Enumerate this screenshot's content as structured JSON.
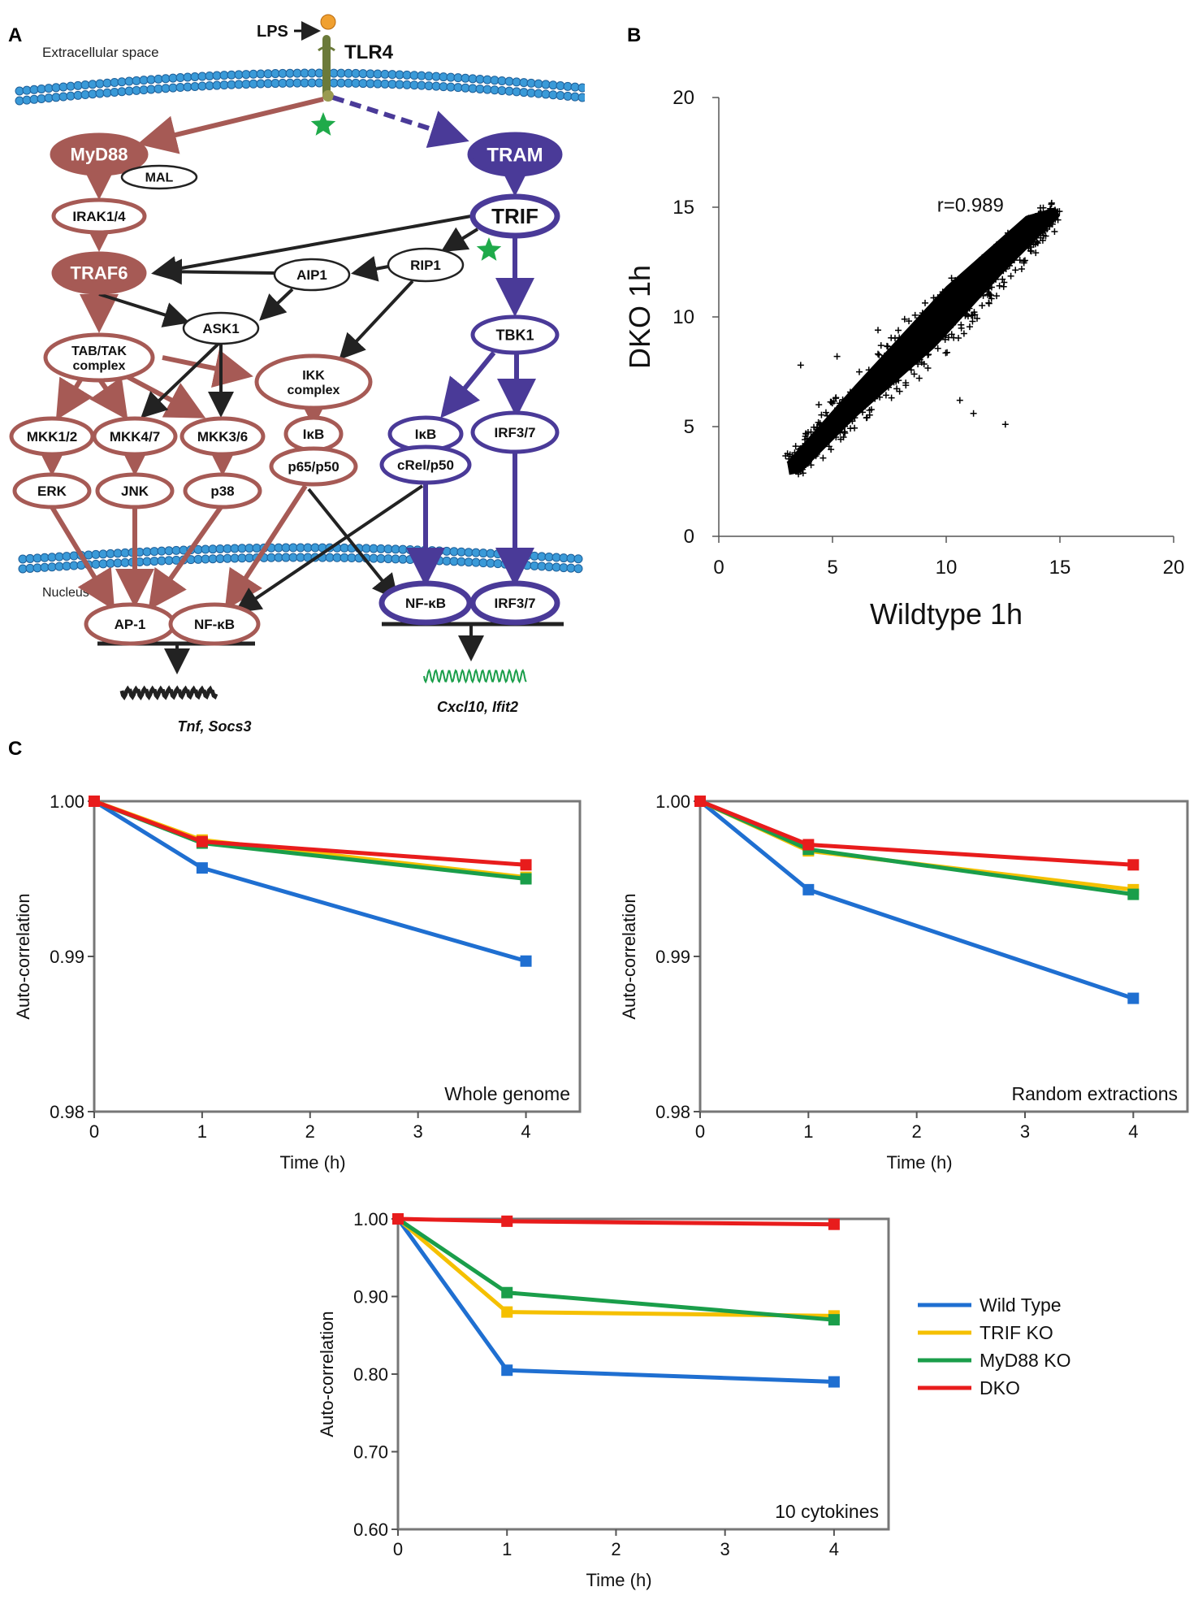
{
  "panels": {
    "a": "A",
    "b": "B",
    "c": "C"
  },
  "colors": {
    "myd88": "#a65a55",
    "trif": "#4a3a98",
    "black": "#222222",
    "star": "#1faa4a",
    "wild_type": "#1f6fd1",
    "trif_ko": "#f5c000",
    "myd88_ko": "#1a9e4a",
    "dko": "#e81c1c"
  },
  "pathway": {
    "extracellular": "Extracellular space",
    "lps": "LPS",
    "tlr4": "TLR4",
    "nucleus": "Nucleus",
    "nodes": {
      "myd88": "MyD88",
      "mal": "MAL",
      "irak": "IRAK1/4",
      "traf6": "TRAF6",
      "tram": "TRAM",
      "trif": "TRIF",
      "rip1": "RIP1",
      "aip1": "AIP1",
      "ask1": "ASK1",
      "tabtak1": "TAB/TAK",
      "tabtak2": "complex",
      "ikk1": "IKK",
      "ikk2": "complex",
      "tbk1": "TBK1",
      "mkk12": "MKK1/2",
      "mkk47": "MKK4/7",
      "mkk36": "MKK3/6",
      "ikb_left": "IκB",
      "p65": "p65/p50",
      "ikb_right": "IκB",
      "crel": "cRel/p50",
      "irf37": "IRF3/7",
      "erk": "ERK",
      "jnk": "JNK",
      "p38": "p38",
      "ap1": "AP-1",
      "nfkb_left": "NF-κB",
      "nfkb_right": "NF-κB",
      "irf37_nuc": "IRF3/7"
    },
    "genes_left": "Tnf, Socs3",
    "genes_right": "Cxcl10, Ifit2"
  },
  "chart_data": [
    {
      "type": "scatter",
      "id": "B",
      "xlabel": "Wildtype 1h",
      "ylabel": "DKO 1h",
      "xlim": [
        0,
        20
      ],
      "ylim": [
        0,
        20
      ],
      "xticks": [
        "0",
        "5",
        "10",
        "15",
        "20"
      ],
      "yticks": [
        "0",
        "5",
        "10",
        "15",
        "20"
      ],
      "annotation": "r=0.989",
      "points_description": "dense cloud along y≈x from about (3,3) to (15,15)"
    },
    {
      "type": "line",
      "id": "C1",
      "title": "Whole genome",
      "xlabel": "Time (h)",
      "ylabel": "Auto-correlation",
      "x": [
        0,
        1,
        4
      ],
      "xlim": [
        0,
        4.5
      ],
      "ylim": [
        0.98,
        1.0
      ],
      "xticks": [
        "0",
        "1",
        "2",
        "3",
        "4"
      ],
      "yticks": [
        "1.00",
        "0.99",
        "0.98"
      ],
      "series": [
        {
          "name": "Wild Type",
          "values": [
            1.0,
            0.9957,
            0.9897
          ]
        },
        {
          "name": "TRIF KO",
          "values": [
            1.0,
            0.9975,
            0.9951
          ]
        },
        {
          "name": "MyD88 KO",
          "values": [
            1.0,
            0.9973,
            0.995
          ]
        },
        {
          "name": "DKO",
          "values": [
            1.0,
            0.9974,
            0.9959
          ]
        }
      ]
    },
    {
      "type": "line",
      "id": "C2",
      "title": "Random extractions",
      "xlabel": "Time (h)",
      "ylabel": "Auto-correlation",
      "x": [
        0,
        1,
        4
      ],
      "xlim": [
        0,
        4.5
      ],
      "ylim": [
        0.98,
        1.0
      ],
      "xticks": [
        "0",
        "1",
        "2",
        "3",
        "4"
      ],
      "yticks": [
        "1.00",
        "0.99",
        "0.98"
      ],
      "series": [
        {
          "name": "Wild Type",
          "values": [
            1.0,
            0.9943,
            0.9873
          ]
        },
        {
          "name": "TRIF KO",
          "values": [
            1.0,
            0.9968,
            0.9943
          ]
        },
        {
          "name": "MyD88 KO",
          "values": [
            1.0,
            0.9969,
            0.994
          ]
        },
        {
          "name": "DKO",
          "values": [
            1.0,
            0.9972,
            0.9959
          ]
        }
      ]
    },
    {
      "type": "line",
      "id": "C3",
      "title": "10 cytokines",
      "xlabel": "Time (h)",
      "ylabel": "Auto-correlation",
      "x": [
        0,
        1,
        4
      ],
      "xlim": [
        0,
        4.5
      ],
      "ylim": [
        0.6,
        1.0
      ],
      "xticks": [
        "0",
        "1",
        "2",
        "3",
        "4"
      ],
      "yticks": [
        "1.00",
        "0.90",
        "0.80",
        "0.70",
        "0.60"
      ],
      "series": [
        {
          "name": "Wild Type",
          "values": [
            1.0,
            0.805,
            0.79
          ]
        },
        {
          "name": "TRIF KO",
          "values": [
            1.0,
            0.88,
            0.875
          ]
        },
        {
          "name": "MyD88 KO",
          "values": [
            1.0,
            0.905,
            0.87
          ]
        },
        {
          "name": "DKO",
          "values": [
            1.0,
            0.997,
            0.993
          ]
        }
      ]
    }
  ],
  "legend": [
    "Wild Type",
    "TRIF KO",
    "MyD88 KO",
    "DKO"
  ]
}
